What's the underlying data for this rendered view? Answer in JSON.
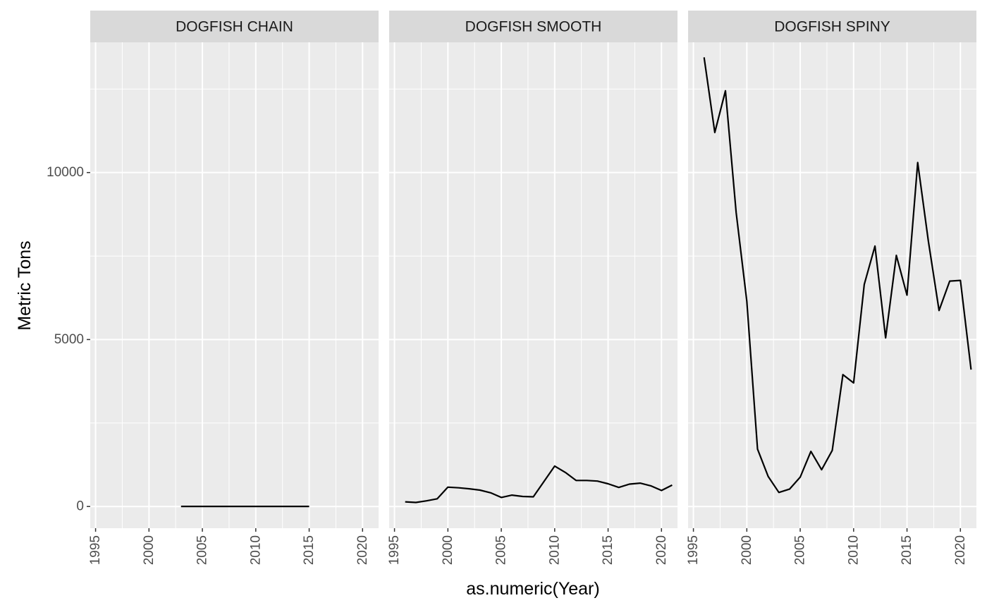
{
  "chart_data": {
    "type": "line",
    "facet_layout": "1 row x 3 columns, shared y axis",
    "xlabel": "as.numeric(Year)",
    "ylabel": "Metric Tons",
    "xlim": [
      1994.5,
      2021.5
    ],
    "ylim": [
      -650,
      13900
    ],
    "x_ticks": [
      1995,
      2000,
      2005,
      2010,
      2015,
      2020
    ],
    "y_ticks": [
      0,
      5000,
      10000
    ],
    "grid": true,
    "colors": {
      "panel_bg": "#EBEBEB",
      "strip_bg": "#D9D9D9",
      "grid": "#FFFFFF",
      "line": "#000000"
    },
    "panels": [
      {
        "title": "DOGFISH CHAIN",
        "x": [
          2003,
          2004,
          2005,
          2006,
          2007,
          2008,
          2009,
          2010,
          2011,
          2012,
          2013,
          2014,
          2015
        ],
        "y": [
          2,
          2,
          2,
          2,
          2,
          2,
          2,
          2,
          2,
          2,
          2,
          2,
          2
        ]
      },
      {
        "title": "DOGFISH SMOOTH",
        "x": [
          1996,
          1997,
          1998,
          1999,
          2000,
          2001,
          2002,
          2003,
          2004,
          2005,
          2006,
          2007,
          2008,
          2009,
          2010,
          2011,
          2012,
          2013,
          2014,
          2015,
          2016,
          2017,
          2018,
          2019,
          2020,
          2021
        ],
        "y": [
          140,
          120,
          170,
          230,
          580,
          560,
          530,
          490,
          410,
          270,
          340,
          300,
          290,
          750,
          1210,
          1020,
          780,
          780,
          760,
          680,
          570,
          670,
          700,
          620,
          480,
          640
        ]
      },
      {
        "title": "DOGFISH SPINY",
        "x": [
          1996,
          1997,
          1998,
          1999,
          2000,
          2001,
          2002,
          2003,
          2004,
          2005,
          2006,
          2007,
          2008,
          2009,
          2010,
          2011,
          2012,
          2013,
          2014,
          2015,
          2016,
          2017,
          2018,
          2019,
          2020,
          2021
        ],
        "y": [
          13450,
          11200,
          12450,
          8800,
          6150,
          1720,
          900,
          420,
          520,
          880,
          1650,
          1100,
          1680,
          3950,
          3700,
          6650,
          7800,
          5050,
          7520,
          6330,
          10300,
          7950,
          5870,
          6750,
          6770,
          4100
        ]
      }
    ]
  }
}
